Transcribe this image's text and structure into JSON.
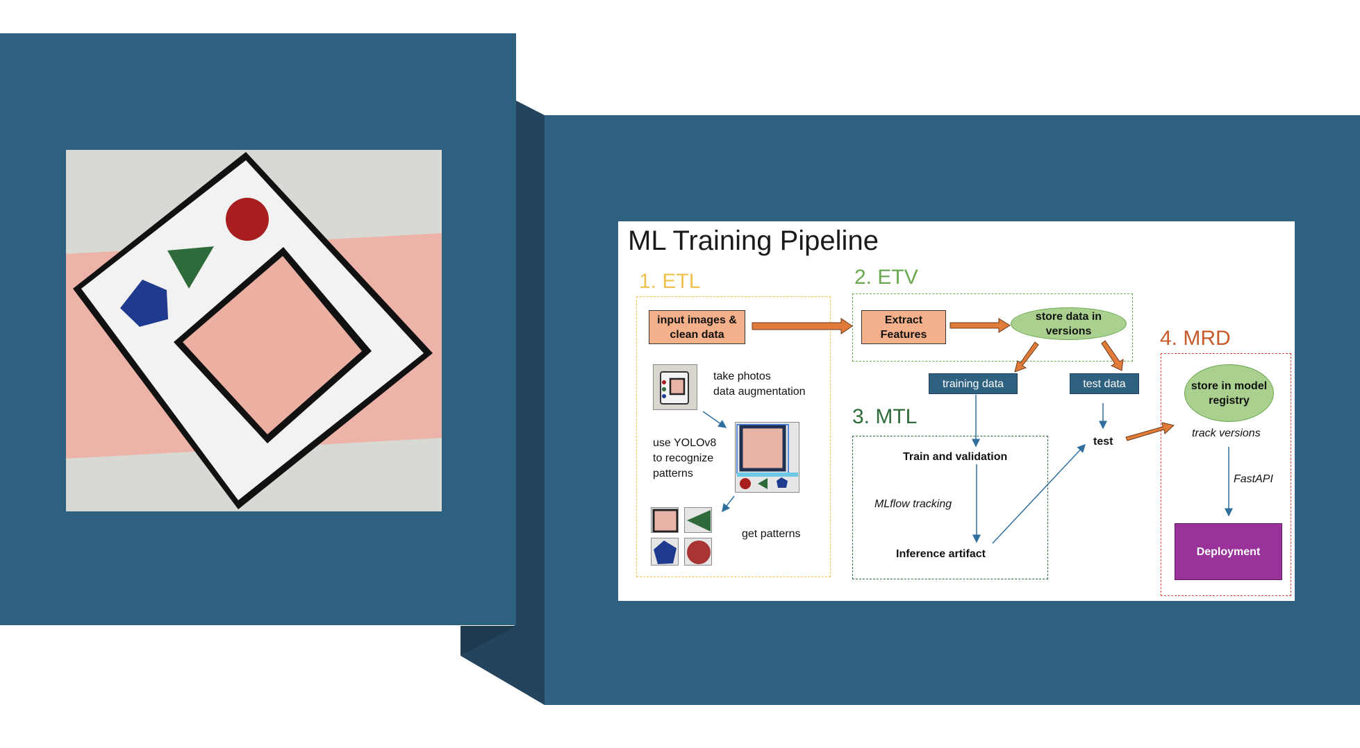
{
  "slide": {
    "title": "ML Training Pipeline",
    "sections": {
      "etl": {
        "label": "1. ETL",
        "color": "#f2c04e"
      },
      "etv": {
        "label": "2. ETV",
        "color": "#6aa84f"
      },
      "mtl": {
        "label": "3. MTL",
        "color": "#2f6b3a"
      },
      "mrd": {
        "label": "4. MRD",
        "color": "#c65a2a"
      }
    },
    "nodes": {
      "input_images": "input images & clean data",
      "extract_features": "Extract Features",
      "store_versions": "store data in versions",
      "training_data": "training data",
      "test_data": "test data",
      "train_validation": "Train and validation",
      "mlflow": "MLflow tracking",
      "inference": "Inference artifact",
      "test": "test",
      "store_registry": "store in model registry",
      "track_versions": "track versions",
      "fastapi": "FastAPI",
      "deployment": "Deployment"
    },
    "etl_steps": {
      "take_photos": "take photos",
      "augmentation": "data augmentation",
      "yolo_line1": "use YOLOv8",
      "yolo_line2": "to recognize",
      "yolo_line3": "patterns",
      "get_patterns": "get patterns"
    }
  },
  "colors": {
    "panel_blue": "#2e607f",
    "panel_side": "#23445c",
    "arrow_orange": "#e07b3a",
    "arrow_blue": "#2e6f9e",
    "deployment_purple": "#993399",
    "ellipse_green": "#a9d08e",
    "box_orange": "#f4b08b"
  }
}
